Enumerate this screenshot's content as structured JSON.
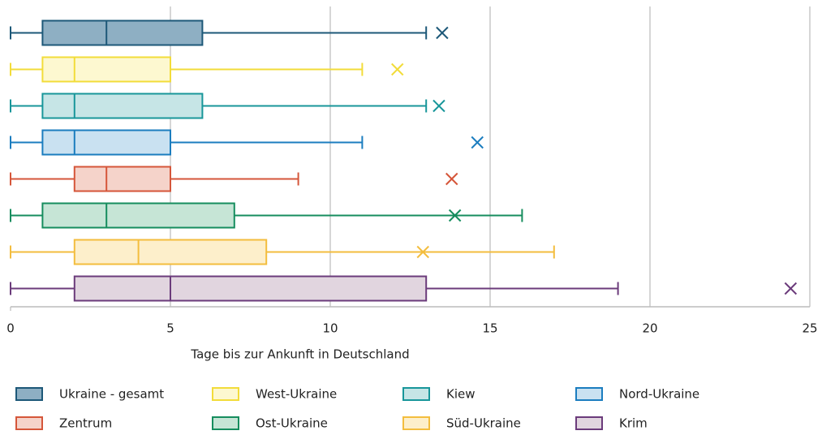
{
  "chart_data": {
    "type": "box",
    "xlabel": "Tage bis zur Ankunft in Deutschland",
    "xlim": [
      0,
      25
    ],
    "xticks": [
      0,
      5,
      10,
      15,
      20,
      25
    ],
    "grid": true,
    "legend": "bottom",
    "series": [
      {
        "name": "Ukraine - gesamt",
        "color": "#1d5878",
        "fill": "#8eafc3",
        "min": 0,
        "q1": 1,
        "median": 3,
        "q3": 6,
        "max": 13,
        "mean": 13.5
      },
      {
        "name": "West-Ukraine",
        "color": "#f2dc3a",
        "fill": "#fdf8d0",
        "min": 0,
        "q1": 1,
        "median": 2,
        "q3": 5,
        "max": 11,
        "mean": 12.1
      },
      {
        "name": "Kiew",
        "color": "#18969a",
        "fill": "#c6e5e6",
        "min": 0,
        "q1": 1,
        "median": 2,
        "q3": 6,
        "max": 13,
        "mean": 13.4
      },
      {
        "name": "Nord-Ukraine",
        "color": "#1b7dbf",
        "fill": "#c9e1f1",
        "min": 0,
        "q1": 1,
        "median": 2,
        "q3": 5,
        "max": 11,
        "mean": 14.6
      },
      {
        "name": "Zentrum",
        "color": "#d5563a",
        "fill": "#f5d3ca",
        "min": 0,
        "q1": 2,
        "median": 3,
        "q3": 5,
        "max": 9,
        "mean": 13.8
      },
      {
        "name": "Ost-Ukraine",
        "color": "#168d5e",
        "fill": "#c6e5d6",
        "min": 0,
        "q1": 1,
        "median": 3,
        "q3": 7,
        "max": 16,
        "mean": 13.9
      },
      {
        "name": "Süd-Ukraine",
        "color": "#f3bd3e",
        "fill": "#fdefcb",
        "min": 0,
        "q1": 2,
        "median": 4,
        "q3": 8,
        "max": 17,
        "mean": 12.9
      },
      {
        "name": "Krim",
        "color": "#6b3b7b",
        "fill": "#e1d5df",
        "min": 0,
        "q1": 2,
        "median": 5,
        "q3": 13,
        "max": 19,
        "mean": 24.4
      }
    ]
  }
}
